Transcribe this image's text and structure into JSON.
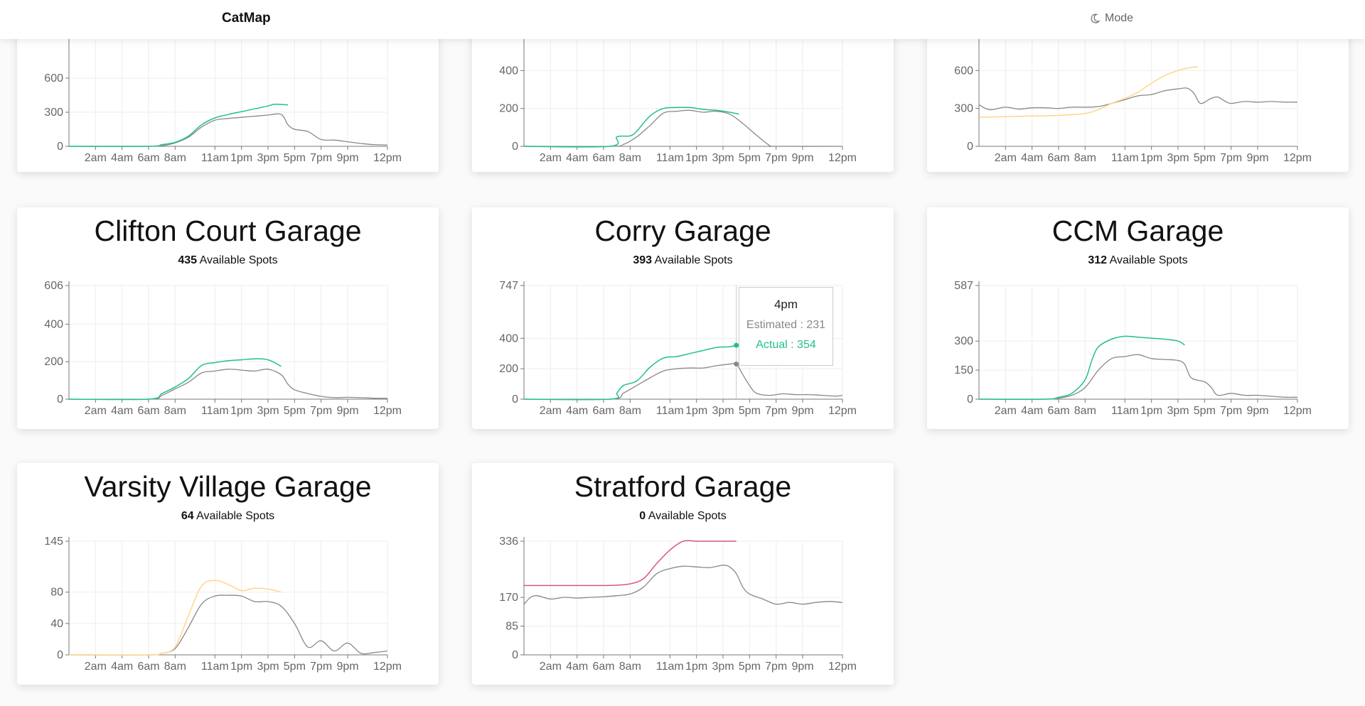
{
  "app": {
    "title": "CatMap",
    "mode_label": "Mode",
    "mode_icon": "moon-icon"
  },
  "colors": {
    "estimated": "#888888",
    "ok": "#21c08b",
    "warn": "#ffd68a",
    "full": "#d9577a"
  },
  "available_label": "Available Spots",
  "x_ticks": [
    "2am",
    "4am",
    "6am",
    "8am",
    "11am",
    "1pm",
    "3pm",
    "5pm",
    "7pm",
    "9pm",
    "12pm"
  ],
  "x_hours": [
    2,
    4,
    6,
    8,
    11,
    13,
    15,
    17,
    19,
    21,
    24
  ],
  "tooltip": {
    "title": "4pm",
    "estimated": "Estimated : 231",
    "actual": "Actual : 354"
  },
  "garages": [
    {
      "name": "",
      "spots": "",
      "status": "ok",
      "ymax": 1000,
      "y_ticks": [
        0,
        300,
        600
      ],
      "estimated": [
        [
          0,
          0
        ],
        [
          6,
          0
        ],
        [
          7,
          5
        ],
        [
          8,
          30
        ],
        [
          9,
          80
        ],
        [
          10,
          170
        ],
        [
          11,
          230
        ],
        [
          12,
          245
        ],
        [
          13,
          255
        ],
        [
          14,
          265
        ],
        [
          15,
          275
        ],
        [
          16,
          280
        ],
        [
          16.5,
          190
        ],
        [
          17,
          150
        ],
        [
          18,
          130
        ],
        [
          19,
          60
        ],
        [
          20,
          55
        ],
        [
          21,
          40
        ],
        [
          22,
          25
        ],
        [
          23,
          15
        ],
        [
          24,
          12
        ]
      ],
      "actual": [
        [
          0,
          0
        ],
        [
          6,
          0
        ],
        [
          7,
          15
        ],
        [
          8,
          35
        ],
        [
          9,
          90
        ],
        [
          10,
          190
        ],
        [
          11,
          250
        ],
        [
          12,
          280
        ],
        [
          13,
          305
        ],
        [
          14,
          330
        ],
        [
          15,
          355
        ],
        [
          15.5,
          370
        ],
        [
          16.5,
          365
        ]
      ]
    },
    {
      "name": "",
      "spots": "",
      "status": "ok",
      "ymax": 600,
      "y_ticks": [
        0,
        200,
        400
      ],
      "estimated": [
        [
          0,
          0
        ],
        [
          6.5,
          0
        ],
        [
          7.5,
          10
        ],
        [
          8.5,
          50
        ],
        [
          9.5,
          110
        ],
        [
          10.5,
          175
        ],
        [
          11.5,
          185
        ],
        [
          12.5,
          190
        ],
        [
          13.5,
          180
        ],
        [
          14.5,
          185
        ],
        [
          15.5,
          170
        ],
        [
          16.5,
          120
        ],
        [
          17.5,
          60
        ],
        [
          18.5,
          5
        ],
        [
          19,
          0
        ],
        [
          24,
          0
        ]
      ],
      "actual": [
        [
          0,
          0
        ],
        [
          6.5,
          0
        ],
        [
          7,
          50
        ],
        [
          8,
          55
        ],
        [
          8.5,
          80
        ],
        [
          9.5,
          160
        ],
        [
          10.5,
          200
        ],
        [
          11.5,
          205
        ],
        [
          12.5,
          205
        ],
        [
          13.5,
          195
        ],
        [
          14.5,
          190
        ],
        [
          15.5,
          180
        ],
        [
          16.2,
          170
        ]
      ]
    },
    {
      "name": "",
      "spots": "",
      "status": "warn",
      "ymax": 900,
      "y_ticks": [
        0,
        300,
        600
      ],
      "estimated": [
        [
          0,
          330
        ],
        [
          0.5,
          300
        ],
        [
          1,
          290
        ],
        [
          2,
          310
        ],
        [
          3,
          295
        ],
        [
          4,
          305
        ],
        [
          5,
          305
        ],
        [
          6,
          300
        ],
        [
          7,
          310
        ],
        [
          8,
          310
        ],
        [
          9,
          315
        ],
        [
          10,
          340
        ],
        [
          11,
          370
        ],
        [
          12,
          400
        ],
        [
          13,
          410
        ],
        [
          14,
          440
        ],
        [
          15,
          455
        ],
        [
          15.7,
          460
        ],
        [
          16.2,
          420
        ],
        [
          16.7,
          340
        ],
        [
          17.5,
          380
        ],
        [
          18,
          390
        ],
        [
          18.5,
          360
        ],
        [
          19,
          340
        ],
        [
          20,
          355
        ],
        [
          21,
          350
        ],
        [
          22,
          355
        ],
        [
          23,
          350
        ],
        [
          24,
          350
        ]
      ],
      "actual": [
        [
          0,
          230
        ],
        [
          2,
          235
        ],
        [
          4,
          240
        ],
        [
          6,
          245
        ],
        [
          8,
          260
        ],
        [
          9,
          290
        ],
        [
          10,
          340
        ],
        [
          11,
          380
        ],
        [
          12,
          430
        ],
        [
          13,
          500
        ],
        [
          14,
          560
        ],
        [
          15,
          600
        ],
        [
          16,
          625
        ],
        [
          16.5,
          630
        ]
      ]
    },
    {
      "name": "Clifton Court Garage",
      "spots": "435",
      "status": "ok",
      "ymax": 606,
      "y_ticks": [
        0,
        200,
        400,
        606
      ],
      "estimated": [
        [
          0,
          0
        ],
        [
          6,
          0
        ],
        [
          7,
          20
        ],
        [
          8,
          55
        ],
        [
          9,
          90
        ],
        [
          10,
          140
        ],
        [
          11,
          150
        ],
        [
          12,
          160
        ],
        [
          13,
          155
        ],
        [
          14,
          150
        ],
        [
          15,
          160
        ],
        [
          16,
          130
        ],
        [
          16.5,
          80
        ],
        [
          17,
          50
        ],
        [
          18,
          30
        ],
        [
          19,
          15
        ],
        [
          20,
          8
        ],
        [
          21,
          10
        ],
        [
          22,
          8
        ],
        [
          23,
          5
        ],
        [
          24,
          5
        ]
      ],
      "actual": [
        [
          0,
          0
        ],
        [
          6,
          0
        ],
        [
          7,
          30
        ],
        [
          8,
          65
        ],
        [
          9,
          110
        ],
        [
          10,
          180
        ],
        [
          11,
          195
        ],
        [
          12,
          205
        ],
        [
          13,
          210
        ],
        [
          14,
          215
        ],
        [
          15,
          210
        ],
        [
          16,
          175
        ]
      ]
    },
    {
      "name": "Corry Garage",
      "spots": "393",
      "status": "ok",
      "ymax": 747,
      "y_ticks": [
        0,
        200,
        400,
        747
      ],
      "estimated": [
        [
          0,
          0
        ],
        [
          6.5,
          0
        ],
        [
          7.5,
          40
        ],
        [
          8.5,
          90
        ],
        [
          9.5,
          140
        ],
        [
          10.5,
          185
        ],
        [
          11.5,
          200
        ],
        [
          12.5,
          205
        ],
        [
          13.5,
          205
        ],
        [
          14.5,
          220
        ],
        [
          15.5,
          230
        ],
        [
          16,
          231
        ],
        [
          16.5,
          160
        ],
        [
          17,
          90
        ],
        [
          17.5,
          40
        ],
        [
          18.5,
          25
        ],
        [
          19.5,
          35
        ],
        [
          20.5,
          30
        ],
        [
          21.5,
          30
        ],
        [
          22.5,
          25
        ],
        [
          23.5,
          20
        ],
        [
          24,
          25
        ]
      ],
      "actual": [
        [
          0,
          0
        ],
        [
          6.5,
          0
        ],
        [
          7,
          40
        ],
        [
          7.5,
          90
        ],
        [
          8.5,
          120
        ],
        [
          9.5,
          210
        ],
        [
          10.5,
          270
        ],
        [
          11.5,
          280
        ],
        [
          12.5,
          300
        ],
        [
          13.5,
          320
        ],
        [
          14.5,
          340
        ],
        [
          15.5,
          345
        ],
        [
          16,
          354
        ]
      ]
    },
    {
      "name": "CCM Garage",
      "spots": "312",
      "status": "ok",
      "ymax": 587,
      "y_ticks": [
        0,
        150,
        300,
        587
      ],
      "estimated": [
        [
          0,
          0
        ],
        [
          5,
          0
        ],
        [
          6,
          5
        ],
        [
          7,
          20
        ],
        [
          8,
          60
        ],
        [
          9,
          150
        ],
        [
          10,
          210
        ],
        [
          11,
          220
        ],
        [
          12,
          230
        ],
        [
          13,
          210
        ],
        [
          14,
          205
        ],
        [
          15,
          200
        ],
        [
          15.5,
          180
        ],
        [
          16,
          110
        ],
        [
          17,
          90
        ],
        [
          17.5,
          60
        ],
        [
          18,
          20
        ],
        [
          19,
          30
        ],
        [
          20,
          20
        ],
        [
          21,
          20
        ],
        [
          22,
          15
        ],
        [
          23,
          10
        ],
        [
          24,
          10
        ]
      ],
      "actual": [
        [
          0,
          0
        ],
        [
          5,
          0
        ],
        [
          6,
          10
        ],
        [
          7,
          30
        ],
        [
          8,
          100
        ],
        [
          8.5,
          200
        ],
        [
          9,
          270
        ],
        [
          10,
          310
        ],
        [
          11,
          325
        ],
        [
          12,
          320
        ],
        [
          13,
          315
        ],
        [
          14,
          310
        ],
        [
          15,
          300
        ],
        [
          15.5,
          280
        ]
      ]
    },
    {
      "name": "Varsity Village Garage",
      "spots": "64",
      "status": "warn",
      "ymax": 145,
      "y_ticks": [
        0,
        40,
        80,
        145
      ],
      "estimated": [
        [
          0,
          0
        ],
        [
          6,
          0
        ],
        [
          7,
          2
        ],
        [
          8,
          8
        ],
        [
          9,
          35
        ],
        [
          10,
          65
        ],
        [
          11,
          75
        ],
        [
          12,
          76
        ],
        [
          13,
          75
        ],
        [
          14,
          68
        ],
        [
          15,
          68
        ],
        [
          16,
          62
        ],
        [
          17,
          40
        ],
        [
          18,
          10
        ],
        [
          19,
          18
        ],
        [
          20,
          5
        ],
        [
          21,
          15
        ],
        [
          22,
          2
        ],
        [
          23,
          3
        ],
        [
          24,
          5
        ]
      ],
      "actual": [
        [
          0,
          0
        ],
        [
          6,
          0
        ],
        [
          7,
          2
        ],
        [
          8,
          10
        ],
        [
          9,
          50
        ],
        [
          10,
          88
        ],
        [
          11,
          95
        ],
        [
          12,
          90
        ],
        [
          13,
          82
        ],
        [
          14,
          85
        ],
        [
          15,
          84
        ],
        [
          16,
          80
        ]
      ]
    },
    {
      "name": "Stratford Garage",
      "spots": "0",
      "status": "full",
      "ymax": 336,
      "y_ticks": [
        0,
        85,
        170,
        336
      ],
      "estimated": [
        [
          0,
          150
        ],
        [
          0.5,
          170
        ],
        [
          1,
          175
        ],
        [
          2,
          165
        ],
        [
          3,
          170
        ],
        [
          4,
          168
        ],
        [
          5,
          170
        ],
        [
          6,
          172
        ],
        [
          7,
          175
        ],
        [
          8,
          180
        ],
        [
          9,
          200
        ],
        [
          10,
          240
        ],
        [
          11,
          255
        ],
        [
          12,
          262
        ],
        [
          13,
          260
        ],
        [
          14,
          258
        ],
        [
          15,
          265
        ],
        [
          15.5,
          260
        ],
        [
          16,
          240
        ],
        [
          16.5,
          200
        ],
        [
          17,
          180
        ],
        [
          18,
          165
        ],
        [
          19,
          150
        ],
        [
          20,
          155
        ],
        [
          21,
          150
        ],
        [
          22,
          155
        ],
        [
          23,
          158
        ],
        [
          24,
          155
        ]
      ],
      "actual": [
        [
          0,
          205
        ],
        [
          2,
          205
        ],
        [
          4,
          205
        ],
        [
          6,
          205
        ],
        [
          7,
          206
        ],
        [
          8,
          210
        ],
        [
          9,
          225
        ],
        [
          10,
          270
        ],
        [
          11,
          310
        ],
        [
          12,
          336
        ],
        [
          13,
          336
        ],
        [
          14,
          336
        ],
        [
          15,
          336
        ],
        [
          16,
          336
        ]
      ]
    }
  ]
}
